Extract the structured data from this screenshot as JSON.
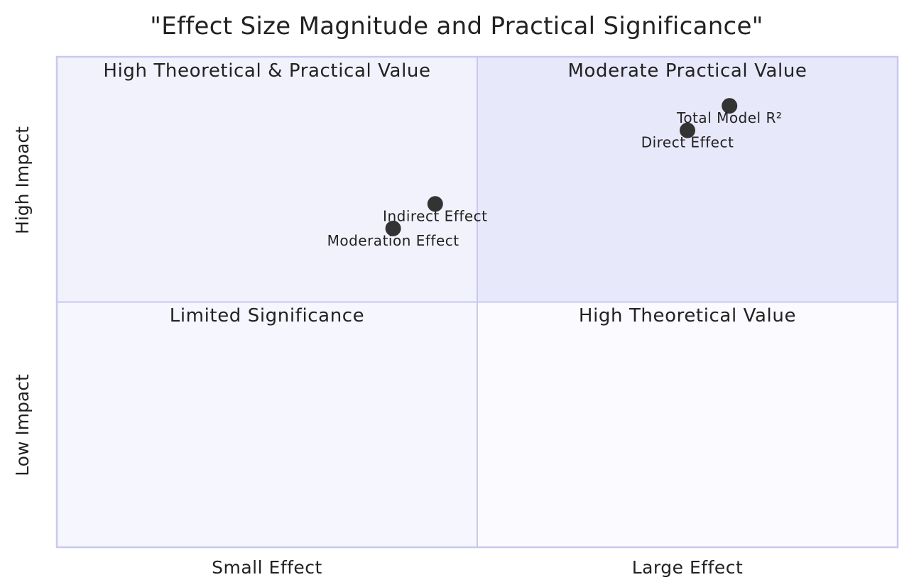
{
  "chart_data": {
    "type": "scatter",
    "title": "\"Effect Size Magnitude and Practical Significance\"",
    "x_axis": {
      "left_label": "Small Effect",
      "right_label": "Large Effect",
      "range": [
        0,
        1
      ]
    },
    "y_axis": {
      "bottom_label": "Low Impact",
      "top_label": "High Impact",
      "range": [
        0,
        1
      ]
    },
    "quadrants": {
      "top_left": "High Theoretical & Practical Value",
      "top_right": "Moderate Practical Value",
      "bottom_left": "Limited Significance",
      "bottom_right": "High Theoretical Value"
    },
    "points": [
      {
        "label": "Total Model R²",
        "x": 0.8,
        "y": 0.9
      },
      {
        "label": "Direct Effect",
        "x": 0.75,
        "y": 0.85
      },
      {
        "label": "Indirect Effect",
        "x": 0.45,
        "y": 0.7
      },
      {
        "label": "Moderation Effect",
        "x": 0.4,
        "y": 0.65
      }
    ],
    "colors": {
      "quadrant_top_right": "#e8e8fb",
      "quadrant_top_left": "#f2f2fd",
      "quadrant_bottom_right": "#fafaff",
      "quadrant_bottom_left": "#f6f6fe",
      "border": "#c8c8f0",
      "point": "#333333"
    }
  }
}
